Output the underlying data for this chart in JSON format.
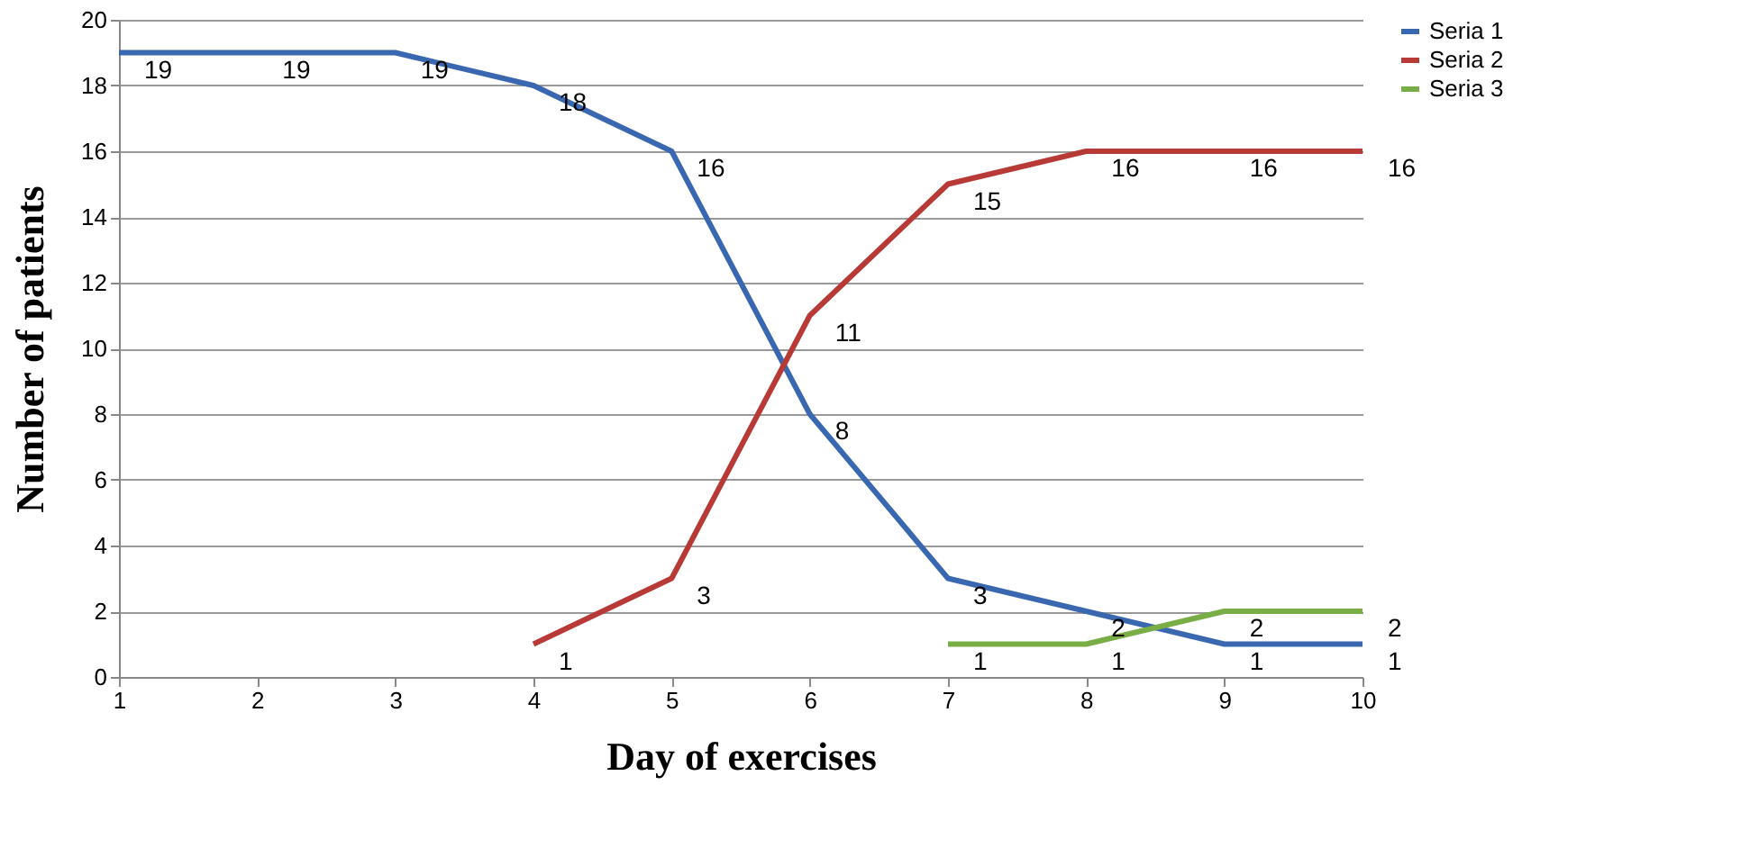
{
  "chart_data": {
    "type": "line",
    "xlabel": "Day of exercises",
    "ylabel": "Number of patients",
    "x": [
      1,
      2,
      3,
      4,
      5,
      6,
      7,
      8,
      9,
      10
    ],
    "series": [
      {
        "name": "Seria 1",
        "color": "#3a68b0",
        "values": [
          19,
          19,
          19,
          18,
          16,
          8,
          3,
          2,
          1,
          1
        ]
      },
      {
        "name": "Seria 2",
        "color": "#b83a36",
        "values": [
          null,
          null,
          null,
          1,
          3,
          11,
          15,
          16,
          16,
          16
        ]
      },
      {
        "name": "Seria 3",
        "color": "#79ad45",
        "values": [
          null,
          null,
          null,
          null,
          null,
          null,
          1,
          1,
          2,
          2
        ]
      }
    ],
    "xlim": [
      1,
      10
    ],
    "xticks": [
      1,
      2,
      3,
      4,
      5,
      6,
      7,
      8,
      9,
      10
    ],
    "ylim": [
      0,
      20
    ],
    "yticks": [
      0,
      2,
      4,
      6,
      8,
      10,
      12,
      14,
      16,
      18,
      20
    ],
    "grid": "y",
    "legend": "right",
    "data_labels": true
  }
}
